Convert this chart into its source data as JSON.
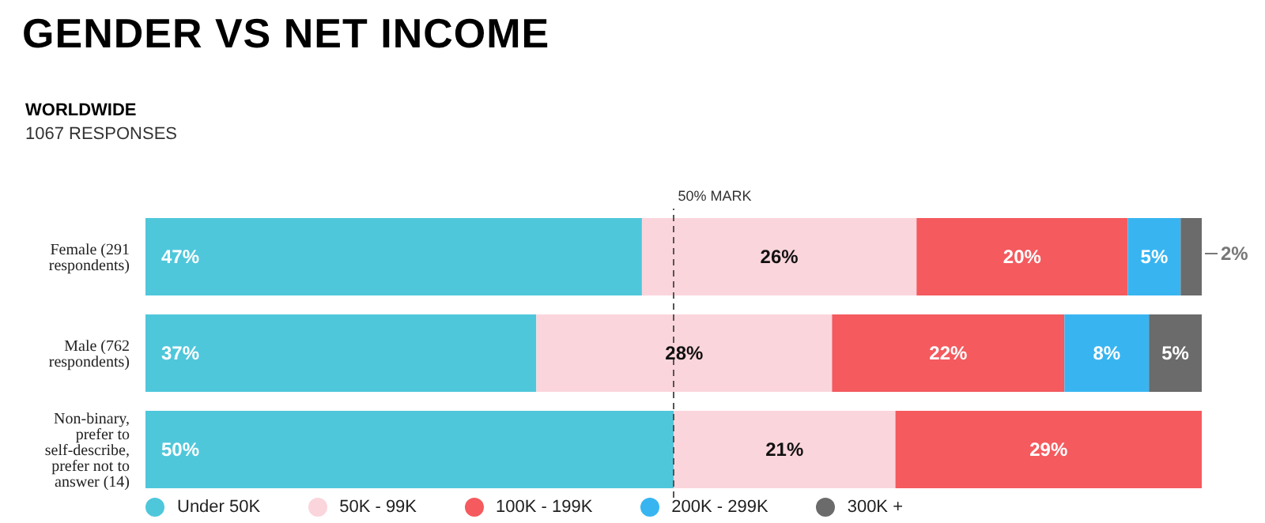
{
  "chart_data": {
    "type": "bar",
    "orientation": "horizontal",
    "stacked": true,
    "title": "GENDER VS NET INCOME",
    "subtitle": "WORLDWIDE",
    "annotations": [
      "1067 RESPONSES"
    ],
    "categories": [
      "Female (291 respondents)",
      "Male (762 respondents)",
      "Non-binary, prefer to self-describe, prefer not to answer (14)"
    ],
    "series": [
      {
        "name": "Under 50K",
        "color": "#4fc7db",
        "values": [
          47,
          37,
          50
        ],
        "value_labels": [
          "47%",
          "37%",
          "50%"
        ]
      },
      {
        "name": "50K - 99K",
        "color": "#fbd5dc",
        "values": [
          26,
          28,
          21
        ],
        "value_labels": [
          "26%",
          "28%",
          "21%"
        ]
      },
      {
        "name": "100K - 199K",
        "color": "#f45a5e",
        "values": [
          20,
          22,
          29
        ],
        "value_labels": [
          "20%",
          "22%",
          "29%"
        ]
      },
      {
        "name": "200K - 299K",
        "color": "#38b5f1",
        "values": [
          5,
          8,
          null
        ],
        "value_labels": [
          "5%",
          "8%",
          null
        ]
      },
      {
        "name": "300K +",
        "color": "#6b6b6b",
        "values": [
          2,
          5,
          null
        ],
        "value_labels": [
          "2%",
          "5%",
          null
        ]
      }
    ],
    "xlim": [
      0,
      100
    ],
    "tick_labels": "y",
    "legend": "bottom",
    "ref_lines": [
      {
        "axis": "x",
        "value": 50,
        "label": "50% MARK",
        "line_style": "dashed",
        "color": "#555555"
      }
    ]
  }
}
